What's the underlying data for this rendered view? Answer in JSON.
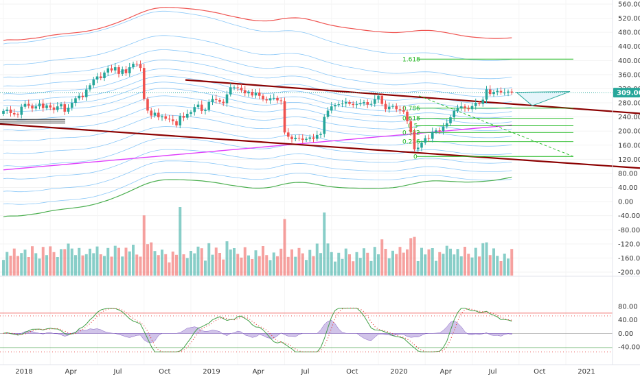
{
  "chart_data": {
    "type": "candlestick",
    "interval": "weekly",
    "price_axis": {
      "ticks": [
        "560.00",
        "520.00",
        "480.00",
        "440.00",
        "400.00",
        "360.00",
        "320.00",
        "280.00",
        "240.00",
        "200.00",
        "160.00",
        "120.00",
        "80.00",
        "40.00",
        "0.00",
        "-40.00",
        "-80.00",
        "-120.00",
        "-160.00",
        "-200.00"
      ],
      "tick_values": [
        560,
        520,
        480,
        440,
        400,
        360,
        320,
        280,
        240,
        200,
        160,
        120,
        80,
        40,
        0,
        -40,
        -80,
        -120,
        -160,
        -200
      ],
      "ylim": [
        -212,
        572
      ]
    },
    "last_price": {
      "label": "309.00",
      "value": 309,
      "color": "#26a69a"
    },
    "oscillator_axis": {
      "ticks": [
        "80.00",
        "40.00",
        "0.00",
        "-40.00"
      ],
      "tick_values": [
        80,
        40,
        0,
        -40
      ],
      "ylim": [
        -60,
        90
      ],
      "upper_band": 60,
      "lower_band": -55
    },
    "time_axis": {
      "labels": [
        "2018",
        "Apr",
        "Jul",
        "Oct",
        "2019",
        "Apr",
        "Jul",
        "Oct",
        "2020",
        "Apr",
        "Jul",
        "Oct",
        "2021"
      ],
      "week_index": [
        0,
        13,
        26,
        39,
        52,
        65,
        78,
        91,
        104,
        117,
        130,
        143,
        156
      ]
    },
    "fib_levels": [
      {
        "label": "1.618",
        "value": 404
      },
      {
        "label": "0.786",
        "value": 265
      },
      {
        "label": "0.618",
        "value": 236
      },
      {
        "label": "0.5",
        "value": 215
      },
      {
        "label": "0.382",
        "value": 196
      },
      {
        "label": "0.236",
        "value": 170
      },
      {
        "label": "0",
        "value": 128
      }
    ],
    "closes": [
      257,
      261,
      251,
      247,
      246,
      269,
      277,
      272,
      264,
      270,
      278,
      265,
      273,
      267,
      260,
      270,
      276,
      255,
      266,
      280,
      293,
      300,
      296,
      318,
      330,
      346,
      355,
      350,
      366,
      378,
      372,
      381,
      362,
      375,
      364,
      381,
      391,
      390,
      379,
      291,
      258,
      244,
      252,
      239,
      242,
      235,
      233,
      228,
      216,
      243,
      238,
      249,
      254,
      268,
      275,
      257,
      260,
      282,
      291,
      288,
      283,
      279,
      304,
      324,
      324,
      323,
      316,
      307,
      311,
      301,
      309,
      300,
      290,
      287,
      293,
      294,
      287,
      285,
      196,
      184,
      177,
      181,
      179,
      175,
      178,
      182,
      178,
      189,
      192,
      240,
      258,
      270,
      274,
      276,
      278,
      282,
      277,
      274,
      276,
      279,
      282,
      275,
      277,
      290,
      300,
      277,
      262,
      269,
      271,
      262,
      259,
      255,
      228,
      197,
      148,
      153,
      167,
      180,
      178,
      198,
      202,
      200,
      213,
      222,
      239,
      257,
      265,
      270,
      265,
      262,
      271,
      280,
      277,
      289,
      318,
      305,
      311,
      314,
      309,
      309,
      312,
      309
    ],
    "volume_ticks": [],
    "colors": {
      "up": "#26a69a",
      "down": "#ef5350",
      "upper_envelope": "#ef5350",
      "lower_envelope": "#4caf50",
      "envelope": "#64b5f6",
      "ma": "#e040fb",
      "trendline": "#8b0000",
      "fib": "#1fb81f",
      "osc_signal": "#e53935",
      "osc_main": "#43a047",
      "histogram": "#b39ddb"
    }
  }
}
